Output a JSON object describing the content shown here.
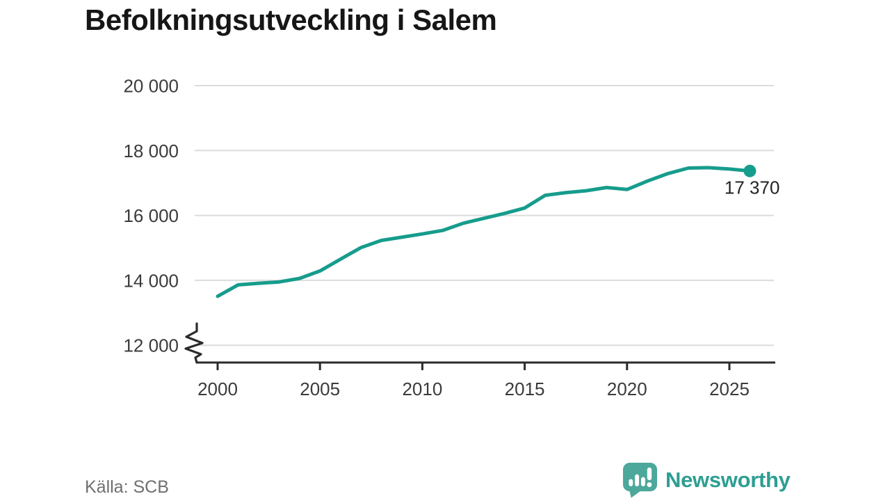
{
  "title": "Befolkningsutveckling i Salem",
  "chart_data": {
    "type": "line",
    "title": "Befolkningsutveckling i Salem",
    "xlabel": "",
    "ylabel": "",
    "x": [
      2000,
      2001,
      2002,
      2003,
      2004,
      2005,
      2006,
      2007,
      2008,
      2009,
      2010,
      2011,
      2012,
      2013,
      2014,
      2015,
      2016,
      2017,
      2018,
      2019,
      2020,
      2021,
      2022,
      2023,
      2024,
      2025,
      2026
    ],
    "series": [
      {
        "name": "Befolkning",
        "values": [
          13510,
          13860,
          13910,
          13950,
          14060,
          14290,
          14650,
          15010,
          15230,
          15330,
          15430,
          15540,
          15760,
          15910,
          16060,
          16230,
          16620,
          16700,
          16760,
          16860,
          16800,
          17060,
          17290,
          17460,
          17470,
          17430,
          17370
        ]
      }
    ],
    "xlim": [
      2000,
      2026
    ],
    "ylim": [
      12000,
      20000
    ],
    "xticks": [
      2000,
      2005,
      2010,
      2015,
      2020,
      2025
    ],
    "xtick_labels": [
      "2000",
      "2005",
      "2010",
      "2015",
      "2020",
      "2025"
    ],
    "yticks": [
      20000,
      18000,
      16000,
      14000,
      12000
    ],
    "ytick_labels": [
      "20 000",
      "18 000",
      "16 000",
      "14 000",
      "12 000"
    ],
    "grid": true,
    "axis_break": true,
    "legend": "none",
    "end_label": "17 370",
    "colors": {
      "line": "#169c8c",
      "grid": "#dcdcdc",
      "axis": "#2b2b2b",
      "tick_label": "#3b3b3b",
      "annotation": "#232323"
    }
  },
  "footer": {
    "source": "Källa: SCB",
    "brand": "Newsworthy",
    "brand_color": "#2d9e92",
    "icon_color": "#4ca89b"
  }
}
